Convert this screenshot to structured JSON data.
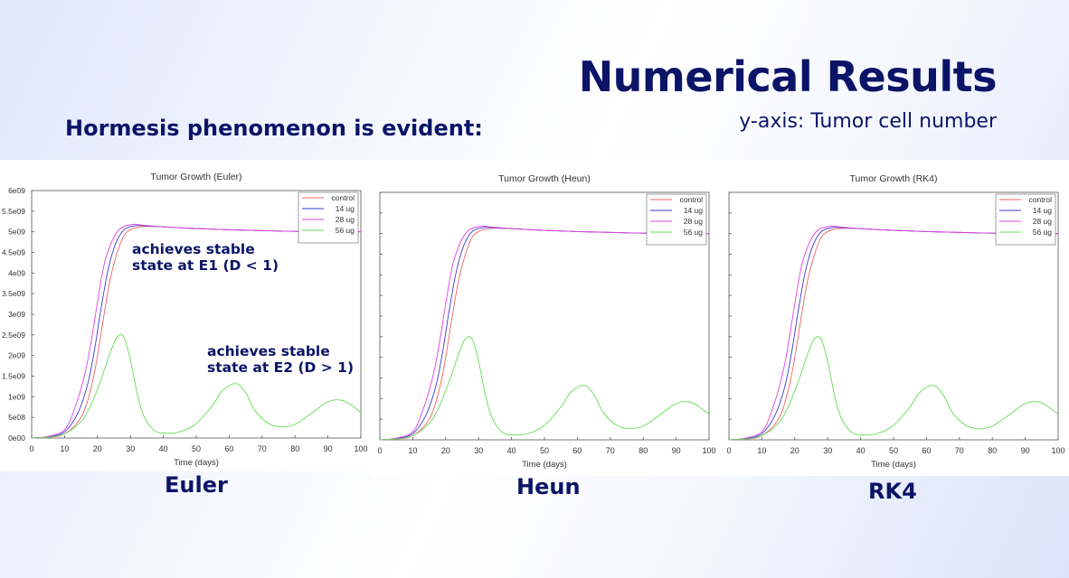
{
  "slide": {
    "title": "Numerical Results",
    "subtitle": "y-axis: Tumor cell number",
    "heading": "Hormesis phenomenon is evident:"
  },
  "colors": {
    "text_dark_navy": "#0b1467",
    "control": "#f06060",
    "14 ug": "#3a3acc",
    "28 ug": "#e040e0",
    "56 ug": "#66dd55"
  },
  "method_labels": [
    "Euler",
    "Heun",
    "RK4"
  ],
  "annotations": {
    "e1_line1": "achieves stable",
    "e1_line2": "state at E1 (D < 1)",
    "e2_line1": "achieves stable",
    "e2_line2": "state at E2 (D > 1)"
  },
  "chart_data": [
    {
      "type": "line",
      "title": "Tumor Growth (Euler)",
      "xlabel": "Time (days)",
      "ylabel": "",
      "xlim": [
        0,
        100
      ],
      "ylim": [
        0,
        6000000000
      ],
      "xticks": [
        "0",
        "10",
        "20",
        "30",
        "40",
        "50",
        "60",
        "70",
        "80",
        "90",
        "100"
      ],
      "yticks": [
        "0e00",
        "5e08",
        "1e09",
        "1.5e09",
        "2e09",
        "2.5e09",
        "3e09",
        "3.5e09",
        "4e09",
        "4.5e09",
        "5e09",
        "5.5e09",
        "6e09"
      ],
      "grid": false,
      "legend_position": "top-right",
      "series": [
        {
          "name": "control",
          "color": "#f06060",
          "x": [
            0,
            5,
            10,
            15,
            18,
            20,
            22,
            24,
            26,
            28,
            30,
            33,
            36,
            40,
            50,
            60,
            70,
            80,
            90,
            100
          ],
          "y": [
            0,
            20000000,
            100000000,
            500000000,
            1200000000,
            2000000000,
            3000000000,
            3900000000,
            4500000000,
            4900000000,
            5050000000,
            5120000000,
            5130000000,
            5120000000,
            5080000000,
            5050000000,
            5030000000,
            5010000000,
            5000000000,
            5000000000
          ]
        },
        {
          "name": "14 ug",
          "color": "#3a3acc",
          "x": [
            0,
            5,
            10,
            14,
            17,
            19,
            21,
            23,
            25,
            27,
            29,
            32,
            35,
            40,
            50,
            60,
            70,
            80,
            90,
            100
          ],
          "y": [
            0,
            30000000,
            150000000,
            600000000,
            1300000000,
            2100000000,
            3100000000,
            4000000000,
            4600000000,
            4950000000,
            5100000000,
            5150000000,
            5140000000,
            5120000000,
            5080000000,
            5050000000,
            5030000000,
            5010000000,
            5000000000,
            5000000000
          ]
        },
        {
          "name": "28 ug",
          "color": "#e040e0",
          "x": [
            0,
            5,
            10,
            13,
            16,
            18,
            20,
            22,
            24,
            26,
            28,
            31,
            34,
            40,
            50,
            60,
            70,
            80,
            90,
            100
          ],
          "y": [
            0,
            40000000,
            200000000,
            700000000,
            1500000000,
            2300000000,
            3300000000,
            4200000000,
            4700000000,
            5000000000,
            5130000000,
            5180000000,
            5160000000,
            5120000000,
            5080000000,
            5050000000,
            5030000000,
            5010000000,
            5000000000,
            5000000000
          ]
        },
        {
          "name": "56 ug",
          "color": "#66dd55",
          "x": [
            0,
            5,
            10,
            15,
            18,
            21,
            24,
            26,
            28,
            30,
            32,
            34,
            37,
            40,
            45,
            50,
            55,
            58,
            62,
            65,
            68,
            72,
            76,
            80,
            85,
            90,
            94,
            97,
            100
          ],
          "y": [
            0,
            20000000,
            100000000,
            400000000,
            800000000,
            1400000000,
            2100000000,
            2450000000,
            2450000000,
            1900000000,
            1100000000,
            550000000,
            200000000,
            120000000,
            150000000,
            350000000,
            800000000,
            1150000000,
            1320000000,
            1100000000,
            650000000,
            350000000,
            270000000,
            330000000,
            600000000,
            880000000,
            920000000,
            800000000,
            620000000
          ]
        }
      ]
    },
    {
      "type": "line",
      "title": "Tumor Growth (Heun)",
      "xlabel": "Time (days)",
      "ylabel": "",
      "xlim": [
        0,
        100
      ],
      "ylim": [
        0,
        6000000000
      ],
      "xticks": [
        "0",
        "10",
        "20",
        "30",
        "40",
        "50",
        "60",
        "70",
        "80",
        "90",
        "100"
      ],
      "yticks": [],
      "grid": false,
      "legend_position": "top-right",
      "series": [
        {
          "name": "control",
          "color": "#f06060",
          "x": [
            0,
            5,
            10,
            15,
            18,
            20,
            22,
            24,
            26,
            28,
            30,
            33,
            36,
            40,
            50,
            60,
            70,
            80,
            90,
            100
          ],
          "y": [
            0,
            20000000,
            100000000,
            500000000,
            1200000000,
            2000000000,
            3000000000,
            3900000000,
            4500000000,
            4900000000,
            5050000000,
            5120000000,
            5130000000,
            5120000000,
            5080000000,
            5050000000,
            5030000000,
            5010000000,
            5000000000,
            5000000000
          ]
        },
        {
          "name": "14 ug",
          "color": "#3a3acc",
          "x": [
            0,
            5,
            10,
            14,
            17,
            19,
            21,
            23,
            25,
            27,
            29,
            32,
            35,
            40,
            50,
            60,
            70,
            80,
            90,
            100
          ],
          "y": [
            0,
            30000000,
            150000000,
            600000000,
            1300000000,
            2100000000,
            3100000000,
            4000000000,
            4600000000,
            4950000000,
            5100000000,
            5150000000,
            5140000000,
            5120000000,
            5080000000,
            5050000000,
            5030000000,
            5010000000,
            5000000000,
            5000000000
          ]
        },
        {
          "name": "28 ug",
          "color": "#e040e0",
          "x": [
            0,
            5,
            10,
            13,
            16,
            18,
            20,
            22,
            24,
            26,
            28,
            31,
            34,
            40,
            50,
            60,
            70,
            80,
            90,
            100
          ],
          "y": [
            0,
            40000000,
            200000000,
            700000000,
            1500000000,
            2300000000,
            3300000000,
            4200000000,
            4700000000,
            5000000000,
            5130000000,
            5180000000,
            5160000000,
            5120000000,
            5080000000,
            5050000000,
            5030000000,
            5010000000,
            5000000000,
            5000000000
          ]
        },
        {
          "name": "56 ug",
          "color": "#66dd55",
          "x": [
            0,
            5,
            10,
            15,
            18,
            21,
            24,
            26,
            28,
            30,
            32,
            34,
            37,
            40,
            45,
            50,
            55,
            58,
            62,
            65,
            68,
            72,
            76,
            80,
            85,
            90,
            94,
            97,
            100
          ],
          "y": [
            0,
            20000000,
            100000000,
            400000000,
            800000000,
            1400000000,
            2100000000,
            2450000000,
            2450000000,
            1900000000,
            1100000000,
            550000000,
            200000000,
            120000000,
            150000000,
            350000000,
            800000000,
            1150000000,
            1320000000,
            1100000000,
            650000000,
            350000000,
            270000000,
            330000000,
            600000000,
            880000000,
            920000000,
            800000000,
            620000000
          ]
        }
      ]
    },
    {
      "type": "line",
      "title": "Tumor Growth (RK4)",
      "xlabel": "Time (days)",
      "ylabel": "",
      "xlim": [
        0,
        100
      ],
      "ylim": [
        0,
        6000000000
      ],
      "xticks": [
        "0",
        "10",
        "20",
        "30",
        "40",
        "50",
        "60",
        "70",
        "80",
        "90",
        "100"
      ],
      "yticks": [],
      "grid": false,
      "legend_position": "top-right",
      "series": [
        {
          "name": "control",
          "color": "#f06060",
          "x": [
            0,
            5,
            10,
            15,
            18,
            20,
            22,
            24,
            26,
            28,
            30,
            33,
            36,
            40,
            50,
            60,
            70,
            80,
            90,
            100
          ],
          "y": [
            0,
            20000000,
            100000000,
            500000000,
            1200000000,
            2000000000,
            3000000000,
            3900000000,
            4500000000,
            4900000000,
            5050000000,
            5120000000,
            5130000000,
            5120000000,
            5080000000,
            5050000000,
            5030000000,
            5010000000,
            5000000000,
            5000000000
          ]
        },
        {
          "name": "14 ug",
          "color": "#3a3acc",
          "x": [
            0,
            5,
            10,
            14,
            17,
            19,
            21,
            23,
            25,
            27,
            29,
            32,
            35,
            40,
            50,
            60,
            70,
            80,
            90,
            100
          ],
          "y": [
            0,
            30000000,
            150000000,
            600000000,
            1300000000,
            2100000000,
            3100000000,
            4000000000,
            4600000000,
            4950000000,
            5100000000,
            5150000000,
            5140000000,
            5120000000,
            5080000000,
            5050000000,
            5030000000,
            5010000000,
            5000000000,
            5000000000
          ]
        },
        {
          "name": "28 ug",
          "color": "#e040e0",
          "x": [
            0,
            5,
            10,
            13,
            16,
            18,
            20,
            22,
            24,
            26,
            28,
            31,
            34,
            40,
            50,
            60,
            70,
            80,
            90,
            100
          ],
          "y": [
            0,
            40000000,
            200000000,
            700000000,
            1500000000,
            2300000000,
            3300000000,
            4200000000,
            4700000000,
            5000000000,
            5130000000,
            5180000000,
            5160000000,
            5120000000,
            5080000000,
            5050000000,
            5030000000,
            5010000000,
            5000000000,
            5000000000
          ]
        },
        {
          "name": "56 ug",
          "color": "#66dd55",
          "x": [
            0,
            5,
            10,
            15,
            18,
            21,
            24,
            26,
            28,
            30,
            32,
            34,
            37,
            40,
            45,
            50,
            55,
            58,
            62,
            65,
            68,
            72,
            76,
            80,
            85,
            90,
            94,
            97,
            100
          ],
          "y": [
            0,
            20000000,
            100000000,
            400000000,
            800000000,
            1400000000,
            2100000000,
            2450000000,
            2450000000,
            1900000000,
            1100000000,
            550000000,
            200000000,
            120000000,
            150000000,
            350000000,
            800000000,
            1150000000,
            1320000000,
            1100000000,
            650000000,
            350000000,
            270000000,
            330000000,
            600000000,
            880000000,
            920000000,
            800000000,
            620000000
          ]
        }
      ]
    }
  ]
}
